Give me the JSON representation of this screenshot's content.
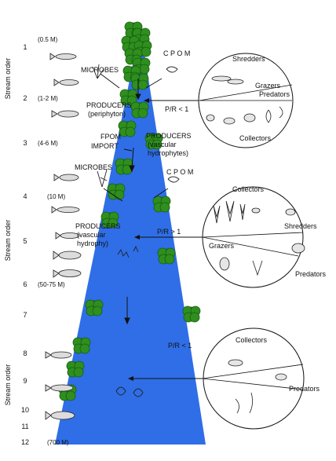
{
  "axis_label": "Stream order",
  "orders": [
    "1",
    "2",
    "3",
    "4",
    "5",
    "6",
    "7",
    "8",
    "9",
    "10",
    "11",
    "12"
  ],
  "widths": [
    "(0.5 M)",
    "(1-2 M)",
    "(4-6 M)",
    "(10 M)",
    "(50-75 M)",
    "(700 M)"
  ],
  "labels": {
    "microbes_top": "MICROBES",
    "cpom_top": "C P O M",
    "producers_peri_1": "PRODUCERS",
    "producers_peri_2": "(periphyton)",
    "fpom_1": "FPOM",
    "fpom_2": "IMPORT",
    "producers_vasc_top_1": "PRODUCERS",
    "producers_vasc_top_2": "(vascular",
    "producers_vasc_top_3": "hydrophytes)",
    "microbes_mid": "MICROBES",
    "cpom_mid": "C P O M",
    "producers_vasc_mid_1": "PRODUCERS",
    "producers_vasc_mid_2": "(vascular",
    "producers_vasc_mid_3": "hydrophy)"
  },
  "ratios": {
    "upper": "P/R < 1",
    "middle": "P/R > 1",
    "lower": "P/R < 1"
  },
  "circle_upper": {
    "shredders": "Shredders",
    "grazers": "Grazers",
    "predators": "Predators",
    "collectors": "Collectors"
  },
  "circle_middle": {
    "collectors": "Collectors",
    "shredders": "Shredders",
    "grazers": "Grazers",
    "predators": "Predators"
  },
  "circle_lower": {
    "collectors": "Collectors",
    "predators": "Predators"
  },
  "colors": {
    "river": "#2f6ee6",
    "tree": "#2f8f1e",
    "tree_dark": "#165c10",
    "line": "#111111"
  }
}
